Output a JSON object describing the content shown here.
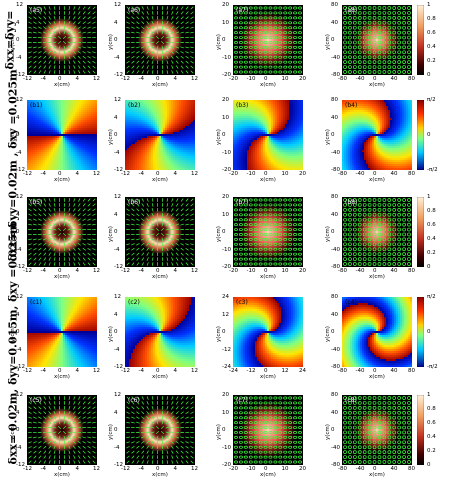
{
  "row_labels": {
    "a": "δxx=δyy=",
    "b": "δxx= δyy=0.02m , δxy =0.025m",
    "c": "δxx= 0.02m, δyy=0.015m, δxy =0.025m"
  },
  "rows": [
    {
      "id": "a-int",
      "panels": [
        {
          "label": "(a5)",
          "kind": "intensity",
          "ticks": [
            "12",
            "4",
            "0",
            "-4",
            "-12"
          ],
          "xticks": [
            "-12",
            "-4",
            "0",
            "4",
            "12"
          ]
        },
        {
          "label": "(a6)",
          "kind": "intensity",
          "ticks": [
            "12",
            "4",
            "0",
            "-4",
            "-12"
          ],
          "xticks": [
            "-12",
            "-4",
            "0",
            "4",
            "12"
          ]
        },
        {
          "label": "(a7)",
          "kind": "intensity-wide",
          "ticks": [
            "20",
            "10",
            "0",
            "-10",
            "-20"
          ],
          "xticks": [
            "-20",
            "-10",
            "0",
            "10",
            "20"
          ]
        },
        {
          "label": "(a8)",
          "kind": "intensity-wide",
          "ticks": [
            "80",
            "40",
            "0",
            "-40",
            "-80"
          ],
          "xticks": [
            "-80",
            "-40",
            "0",
            "40",
            "80"
          ]
        }
      ],
      "colorbar": [
        "1",
        "0.8",
        "0.6",
        "0.4",
        "0.2",
        "0"
      ]
    },
    {
      "id": "b-phase",
      "panels": [
        {
          "label": "(b1)",
          "kind": "phase",
          "ticks": [
            "12",
            "4",
            "0",
            "-4",
            "-12"
          ],
          "xticks": [
            "-12",
            "-4",
            "0",
            "4",
            "12"
          ]
        },
        {
          "label": "(b2)",
          "kind": "phase",
          "ticks": [
            "12",
            "4",
            "0",
            "-4",
            "-12"
          ],
          "xticks": [
            "-12",
            "-4",
            "0",
            "4",
            "12"
          ]
        },
        {
          "label": "(b3)",
          "kind": "phase",
          "ticks": [
            "20",
            "10",
            "0",
            "-10",
            "-20"
          ],
          "xticks": [
            "-20",
            "-10",
            "0",
            "10",
            "20"
          ]
        },
        {
          "label": "(b4)",
          "kind": "phase",
          "ticks": [
            "80",
            "40",
            "0",
            "-40",
            "-80"
          ],
          "xticks": [
            "-80",
            "-40",
            "0",
            "40",
            "80"
          ]
        }
      ],
      "colorbar": [
        "π/2",
        "0",
        "-π/2"
      ]
    },
    {
      "id": "b-int",
      "panels": [
        {
          "label": "(b5)",
          "kind": "intensity",
          "ticks": [
            "12",
            "4",
            "0",
            "-4",
            "-12"
          ],
          "xticks": [
            "-12",
            "-4",
            "0",
            "4",
            "12"
          ]
        },
        {
          "label": "(b6)",
          "kind": "intensity",
          "ticks": [
            "12",
            "4",
            "0",
            "-4",
            "-12"
          ],
          "xticks": [
            "-12",
            "-4",
            "0",
            "4",
            "12"
          ]
        },
        {
          "label": "(b7)",
          "kind": "intensity-wide",
          "ticks": [
            "20",
            "10",
            "0",
            "-10",
            "-20"
          ],
          "xticks": [
            "-20",
            "-10",
            "0",
            "10",
            "20"
          ]
        },
        {
          "label": "(b8)",
          "kind": "intensity-wide",
          "ticks": [
            "80",
            "40",
            "0",
            "-40",
            "-80"
          ],
          "xticks": [
            "-80",
            "-40",
            "0",
            "40",
            "80"
          ]
        }
      ],
      "colorbar": [
        "1",
        "0.8",
        "0.6",
        "0.4",
        "0.2",
        "0"
      ]
    },
    {
      "id": "c-phase",
      "panels": [
        {
          "label": "(c1)",
          "kind": "phase",
          "ticks": [
            "12",
            "4",
            "0",
            "-4",
            "-12"
          ],
          "xticks": [
            "-12",
            "-4",
            "0",
            "4",
            "12"
          ]
        },
        {
          "label": "(c2)",
          "kind": "phase",
          "ticks": [
            "12",
            "4",
            "0",
            "-4",
            "-12"
          ],
          "xticks": [
            "-12",
            "-4",
            "0",
            "4",
            "12"
          ]
        },
        {
          "label": "(c3)",
          "kind": "phase",
          "ticks": [
            "24",
            "12",
            "0",
            "-12",
            "-24"
          ],
          "xticks": [
            "-24",
            "-12",
            "0",
            "12",
            "24"
          ]
        },
        {
          "label": "(c4)",
          "kind": "phase",
          "ticks": [
            "80",
            "40",
            "0",
            "-40",
            "-80"
          ],
          "xticks": [
            "-80",
            "-40",
            "0",
            "40",
            "80"
          ]
        }
      ],
      "colorbar": [
        "π/2",
        "0",
        "-π/2"
      ]
    },
    {
      "id": "c-int",
      "panels": [
        {
          "label": "(c5)",
          "kind": "intensity",
          "ticks": [
            "12",
            "4",
            "0",
            "-4",
            "-12"
          ],
          "xticks": [
            "-12",
            "-4",
            "0",
            "4",
            "12"
          ]
        },
        {
          "label": "(c6)",
          "kind": "intensity",
          "ticks": [
            "12",
            "4",
            "0",
            "-4",
            "-12"
          ],
          "xticks": [
            "-12",
            "-4",
            "0",
            "4",
            "12"
          ]
        },
        {
          "label": "(c7)",
          "kind": "intensity-wide",
          "ticks": [
            "20",
            "10",
            "0",
            "-10",
            "-20"
          ],
          "xticks": [
            "-20",
            "-10",
            "0",
            "10",
            "20"
          ]
        },
        {
          "label": "(c8)",
          "kind": "intensity-wide",
          "ticks": [
            "80",
            "40",
            "0",
            "-40",
            "-80"
          ],
          "xticks": [
            "-80",
            "-40",
            "0",
            "40",
            "80"
          ]
        }
      ],
      "colorbar": [
        "1",
        "0.8",
        "0.6",
        "0.4",
        "0.2",
        "0"
      ]
    }
  ],
  "axis": {
    "x": "x(cm)",
    "y": "y(cm)"
  }
}
